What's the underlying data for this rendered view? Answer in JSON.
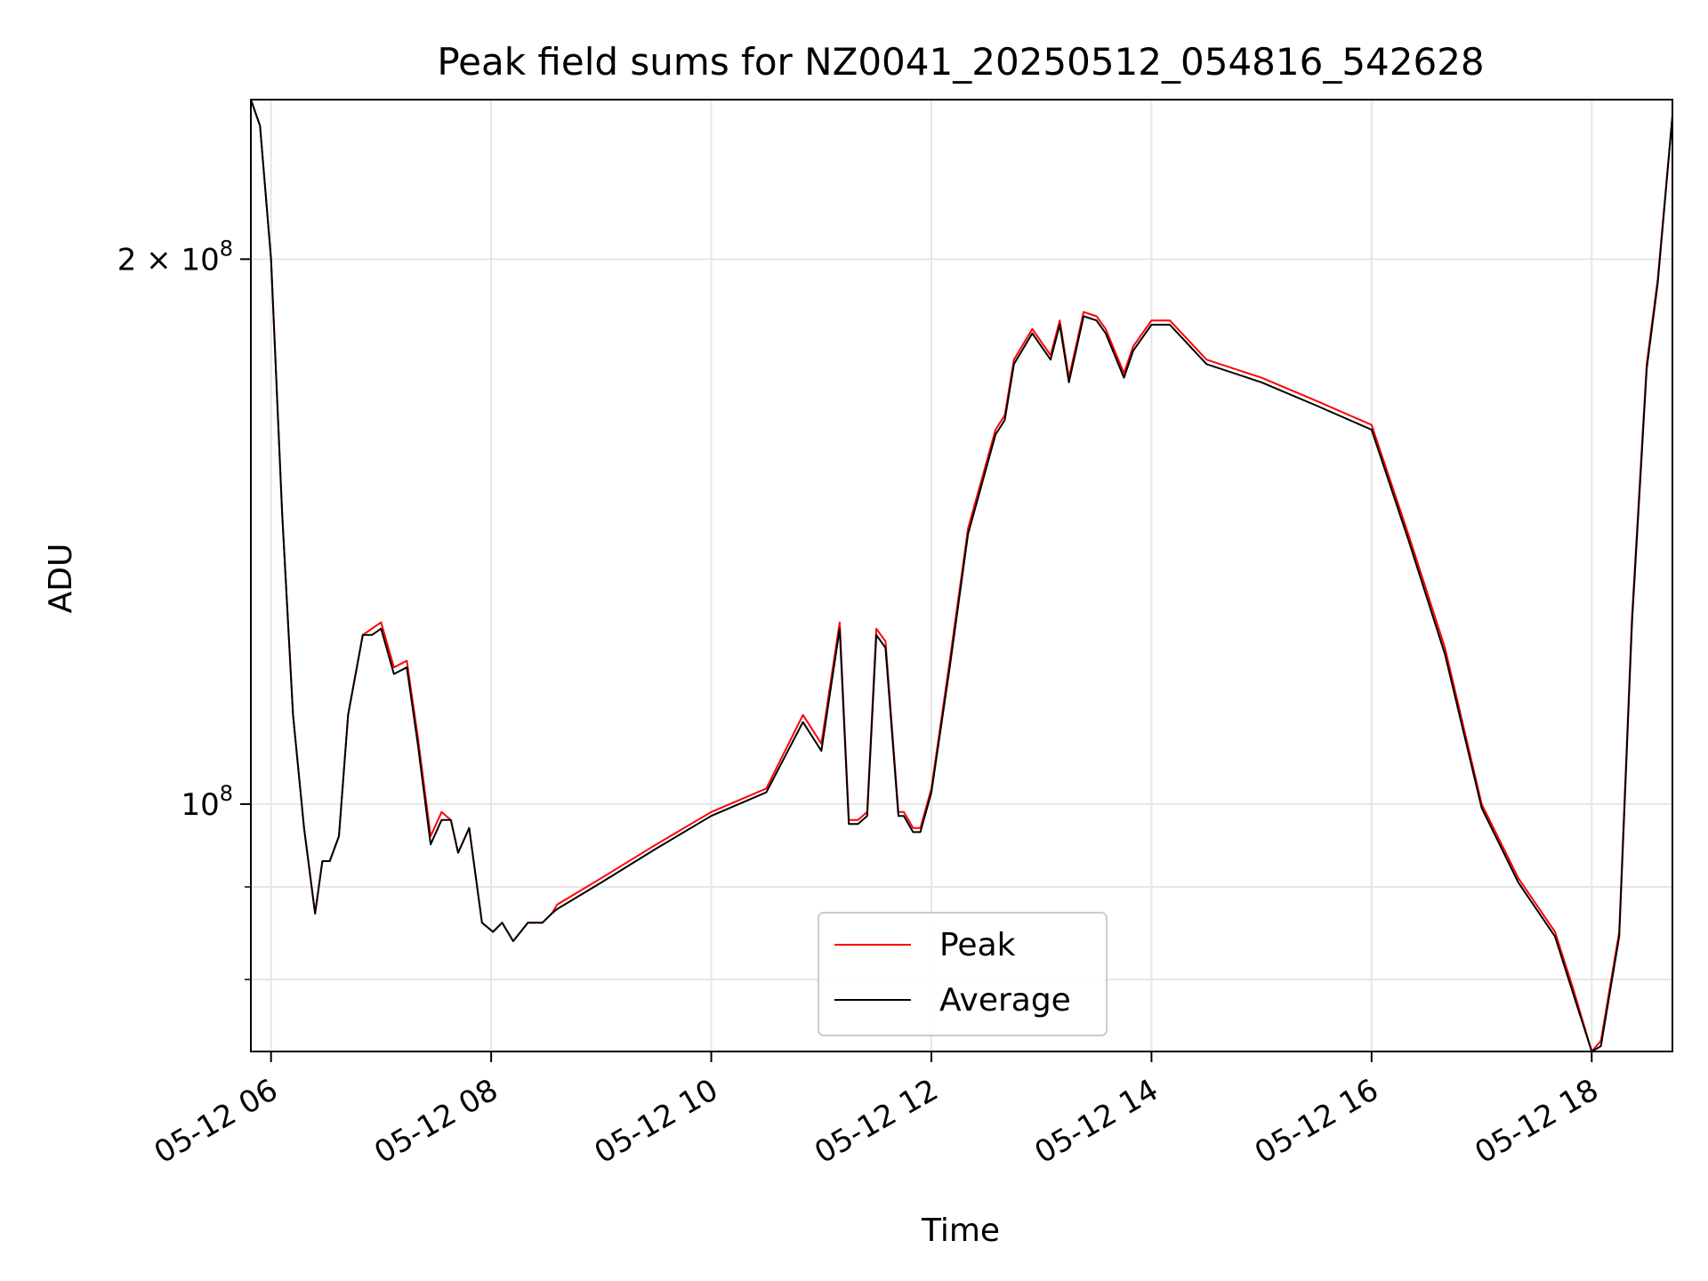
{
  "chart_data": {
    "type": "line",
    "title": "Peak field sums for NZ0041_20250512_054816_542628",
    "xlabel": "Time",
    "ylabel": "ADU",
    "yscale": "log",
    "ylim": [
      73000000,
      245000000
    ],
    "xlim": [
      "05-12 05:49",
      "05-12 18:44"
    ],
    "grid": true,
    "legend_position": "lower center",
    "x_ticks": [
      "05-12 06",
      "05-12 08",
      "05-12 10",
      "05-12 12",
      "05-12 14",
      "05-12 16",
      "05-12 18"
    ],
    "y_ticks": [
      {
        "value": 200000000,
        "label_base": "2 × 10",
        "label_exp": "8"
      },
      {
        "value": 100000000,
        "label_base": "10",
        "label_exp": "8"
      }
    ],
    "y_minor_ticks": [
      90000000,
      80000000
    ],
    "x": [
      "05-12 05:49",
      "05-12 05:54",
      "05-12 06:00",
      "05-12 06:06",
      "05-12 06:12",
      "05-12 06:18",
      "05-12 06:24",
      "05-12 06:28",
      "05-12 06:32",
      "05-12 06:37",
      "05-12 06:42",
      "05-12 06:50",
      "05-12 06:55",
      "05-12 07:00",
      "05-12 07:07",
      "05-12 07:14",
      "05-12 07:20",
      "05-12 07:27",
      "05-12 07:33",
      "05-12 07:38",
      "05-12 07:42",
      "05-12 07:48",
      "05-12 07:55",
      "05-12 08:01",
      "05-12 08:06",
      "05-12 08:12",
      "05-12 08:20",
      "05-12 08:28",
      "05-12 08:33",
      "05-12 08:36",
      "05-12 09:00",
      "05-12 09:30",
      "05-12 10:00",
      "05-12 10:30",
      "05-12 10:50",
      "05-12 11:00",
      "05-12 11:10",
      "05-12 11:15",
      "05-12 11:20",
      "05-12 11:25",
      "05-12 11:30",
      "05-12 11:35",
      "05-12 11:42",
      "05-12 11:45",
      "05-12 11:50",
      "05-12 11:54",
      "05-12 12:00",
      "05-12 12:10",
      "05-12 12:20",
      "05-12 12:35",
      "05-12 12:40",
      "05-12 12:45",
      "05-12 12:55",
      "05-12 13:05",
      "05-12 13:10",
      "05-12 13:15",
      "05-12 13:23",
      "05-12 13:30",
      "05-12 13:35",
      "05-12 13:45",
      "05-12 13:50",
      "05-12 14:00",
      "05-12 14:10",
      "05-12 14:30",
      "05-12 15:00",
      "05-12 15:30",
      "05-12 16:00",
      "05-12 16:20",
      "05-12 16:40",
      "05-12 17:00",
      "05-12 17:20",
      "05-12 17:40",
      "05-12 17:50",
      "05-12 18:00",
      "05-12 18:05",
      "05-12 18:15",
      "05-12 18:22",
      "05-12 18:30",
      "05-12 18:36",
      "05-12 18:44"
    ],
    "series": [
      {
        "name": "Peak",
        "color": "#ff0000",
        "values": [
          245,
          237,
          200,
          145,
          112,
          97,
          87,
          93,
          93,
          96,
          112,
          124,
          125,
          126,
          119,
          120,
          109,
          96,
          99,
          98,
          94,
          97,
          86,
          85,
          86,
          84,
          86,
          86,
          87,
          88,
          91,
          95,
          99,
          102,
          112,
          108,
          126,
          98,
          98,
          99,
          125,
          123,
          99,
          99,
          97,
          97,
          102,
          120,
          142,
          161,
          164,
          176,
          183,
          177,
          185,
          172,
          187,
          186,
          183,
          173,
          179,
          185,
          185,
          176,
          172,
          167,
          162,
          141,
          122,
          100,
          91,
          85,
          79,
          73,
          74,
          85,
          127,
          175,
          195,
          240
        ]
      },
      {
        "name": "Average",
        "color": "#000000",
        "values": [
          245,
          237,
          200,
          145,
          112,
          97,
          87,
          93,
          93,
          96,
          112,
          124,
          124,
          125,
          118,
          119,
          108,
          95,
          98,
          98,
          94,
          97,
          86,
          85,
          86,
          84,
          86,
          86,
          87,
          87.5,
          90.5,
          94.5,
          98.5,
          101.5,
          111,
          107,
          125,
          97.5,
          97.5,
          98.5,
          124,
          122,
          98.5,
          98.5,
          96.5,
          96.5,
          101.5,
          119,
          141,
          160,
          163,
          175,
          182,
          176,
          184,
          171,
          186,
          185,
          182,
          172,
          178,
          184,
          184,
          175,
          171,
          166,
          161,
          140,
          121,
          99.5,
          90.5,
          84.5,
          78.5,
          73,
          73.5,
          84.5,
          126,
          174,
          194,
          240
        ]
      }
    ]
  }
}
